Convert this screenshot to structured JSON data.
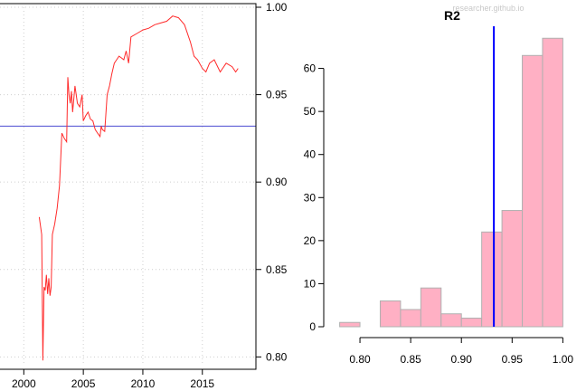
{
  "colors": {
    "line": "#ff2a2a",
    "refline": "#3333cc",
    "hist_fill": "#ffb0c4",
    "hist_border": "#b0b0b0",
    "mean_line": "#0000ff",
    "grid": "#cfcfcf"
  },
  "watermark": "researcher.github.io",
  "chart_data": [
    {
      "type": "line",
      "title": "",
      "xlabel": "",
      "ylabel": "",
      "xlim": [
        1998,
        2019.5
      ],
      "ylim": [
        0.795,
        1.0
      ],
      "xticks": [
        2000,
        2005,
        2010,
        2015
      ],
      "xtick_labels": [
        "2000",
        "2005",
        "2010",
        "2015"
      ],
      "yticks": [
        0.8,
        0.85,
        0.9,
        0.95,
        1.0
      ],
      "ytick_labels": [
        "0.80",
        "0.85",
        "0.90",
        "0.95",
        "1.00"
      ],
      "y_axis_side": "right",
      "grid": true,
      "reference_line": 0.932,
      "series": [
        {
          "x": [
            2001.3,
            2001.5,
            2001.6,
            2001.7,
            2001.8,
            2001.9,
            2002.0,
            2002.1,
            2002.2,
            2002.3,
            2002.4,
            2002.5,
            2002.6,
            2002.8,
            2003.0,
            2003.2,
            2003.4,
            2003.6,
            2003.7,
            2003.8,
            2003.9,
            2004.0,
            2004.1,
            2004.3,
            2004.5,
            2004.7,
            2004.9,
            2005.0,
            2005.2,
            2005.4,
            2005.6,
            2005.8,
            2006.0,
            2006.2,
            2006.4,
            2006.5,
            2006.6,
            2006.8,
            2007.0,
            2007.2,
            2007.4,
            2007.6,
            2007.8,
            2008.0,
            2008.2,
            2008.4,
            2008.6,
            2008.8,
            2009.0,
            2009.5,
            2010.0,
            2010.5,
            2011.0,
            2011.5,
            2012.0,
            2012.5,
            2013.0,
            2013.5,
            2014.0,
            2014.3,
            2014.6,
            2015.0,
            2015.3,
            2015.6,
            2016.0,
            2016.5,
            2017.0,
            2017.5,
            2017.8,
            2018.0
          ],
          "y": [
            0.88,
            0.87,
            0.798,
            0.84,
            0.838,
            0.847,
            0.836,
            0.845,
            0.835,
            0.84,
            0.87,
            0.873,
            0.876,
            0.885,
            0.898,
            0.928,
            0.925,
            0.923,
            0.96,
            0.95,
            0.945,
            0.952,
            0.94,
            0.955,
            0.945,
            0.943,
            0.95,
            0.935,
            0.938,
            0.94,
            0.936,
            0.935,
            0.93,
            0.928,
            0.926,
            0.932,
            0.93,
            0.929,
            0.95,
            0.955,
            0.962,
            0.968,
            0.97,
            0.972,
            0.971,
            0.97,
            0.975,
            0.968,
            0.983,
            0.985,
            0.987,
            0.988,
            0.99,
            0.991,
            0.992,
            0.995,
            0.994,
            0.99,
            0.98,
            0.972,
            0.97,
            0.965,
            0.963,
            0.968,
            0.97,
            0.963,
            0.968,
            0.966,
            0.963,
            0.965
          ]
        }
      ]
    },
    {
      "type": "bar",
      "title": "R2",
      "xlabel": "",
      "ylabel": "",
      "xlim": [
        0.775,
        1.005
      ],
      "ylim": [
        0,
        70
      ],
      "bin_edges": [
        0.78,
        0.8,
        0.82,
        0.84,
        0.86,
        0.88,
        0.9,
        0.92,
        0.94,
        0.96,
        0.98,
        1.0
      ],
      "values": [
        1,
        0,
        6,
        4,
        9,
        3,
        2,
        22,
        27,
        63,
        67
      ],
      "xticks": [
        0.8,
        0.85,
        0.9,
        0.95,
        1.0
      ],
      "xtick_labels": [
        "0.80",
        "0.85",
        "0.90",
        "0.95",
        "1.00"
      ],
      "yticks": [
        0,
        10,
        20,
        30,
        40,
        50,
        60
      ],
      "ytick_labels": [
        "0",
        "10",
        "20",
        "30",
        "40",
        "50",
        "60"
      ],
      "mean_line": 0.932,
      "grid": false
    }
  ]
}
